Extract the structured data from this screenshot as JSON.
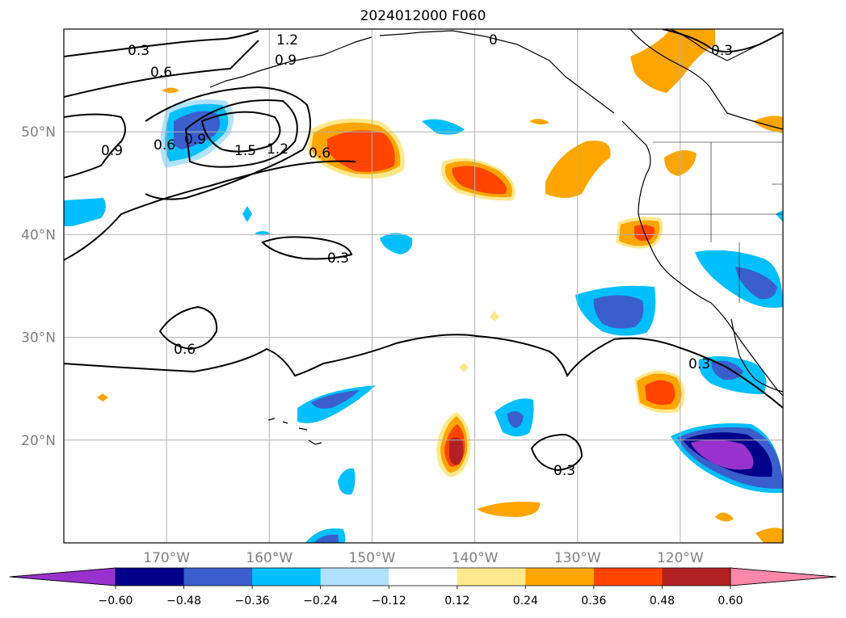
{
  "title": "2024012000 F060",
  "map": {
    "extent": {
      "lon_min": -180,
      "lon_max": -110,
      "lat_min": 10,
      "lat_max": 60
    },
    "lat_ticks": [
      {
        "value": 50,
        "label": "50°N"
      },
      {
        "value": 40,
        "label": "40°N"
      },
      {
        "value": 30,
        "label": "30°N"
      },
      {
        "value": 20,
        "label": "20°N"
      }
    ],
    "lon_ticks": [
      {
        "value": -170,
        "label": "170°W"
      },
      {
        "value": -160,
        "label": "160°W"
      },
      {
        "value": -150,
        "label": "150°W"
      },
      {
        "value": -140,
        "label": "140°W"
      },
      {
        "value": -130,
        "label": "130°W"
      },
      {
        "value": -120,
        "label": "120°W"
      }
    ],
    "contour_labels": [
      "0.3",
      "0.6",
      "0.9",
      "1.2",
      "1.5"
    ]
  },
  "colorbar": {
    "ticks": [
      "−0.60",
      "−0.48",
      "−0.36",
      "−0.24",
      "−0.12",
      "0.12",
      "0.24",
      "0.36",
      "0.48",
      "0.60"
    ],
    "colors": [
      "#9932cc",
      "#00008b",
      "#3a5fcd",
      "#00bfff",
      "#b0e2ff",
      "#ffffff",
      "#ffe88c",
      "#ffa500",
      "#ff4500",
      "#b22222",
      "#ff88aa"
    ]
  }
}
